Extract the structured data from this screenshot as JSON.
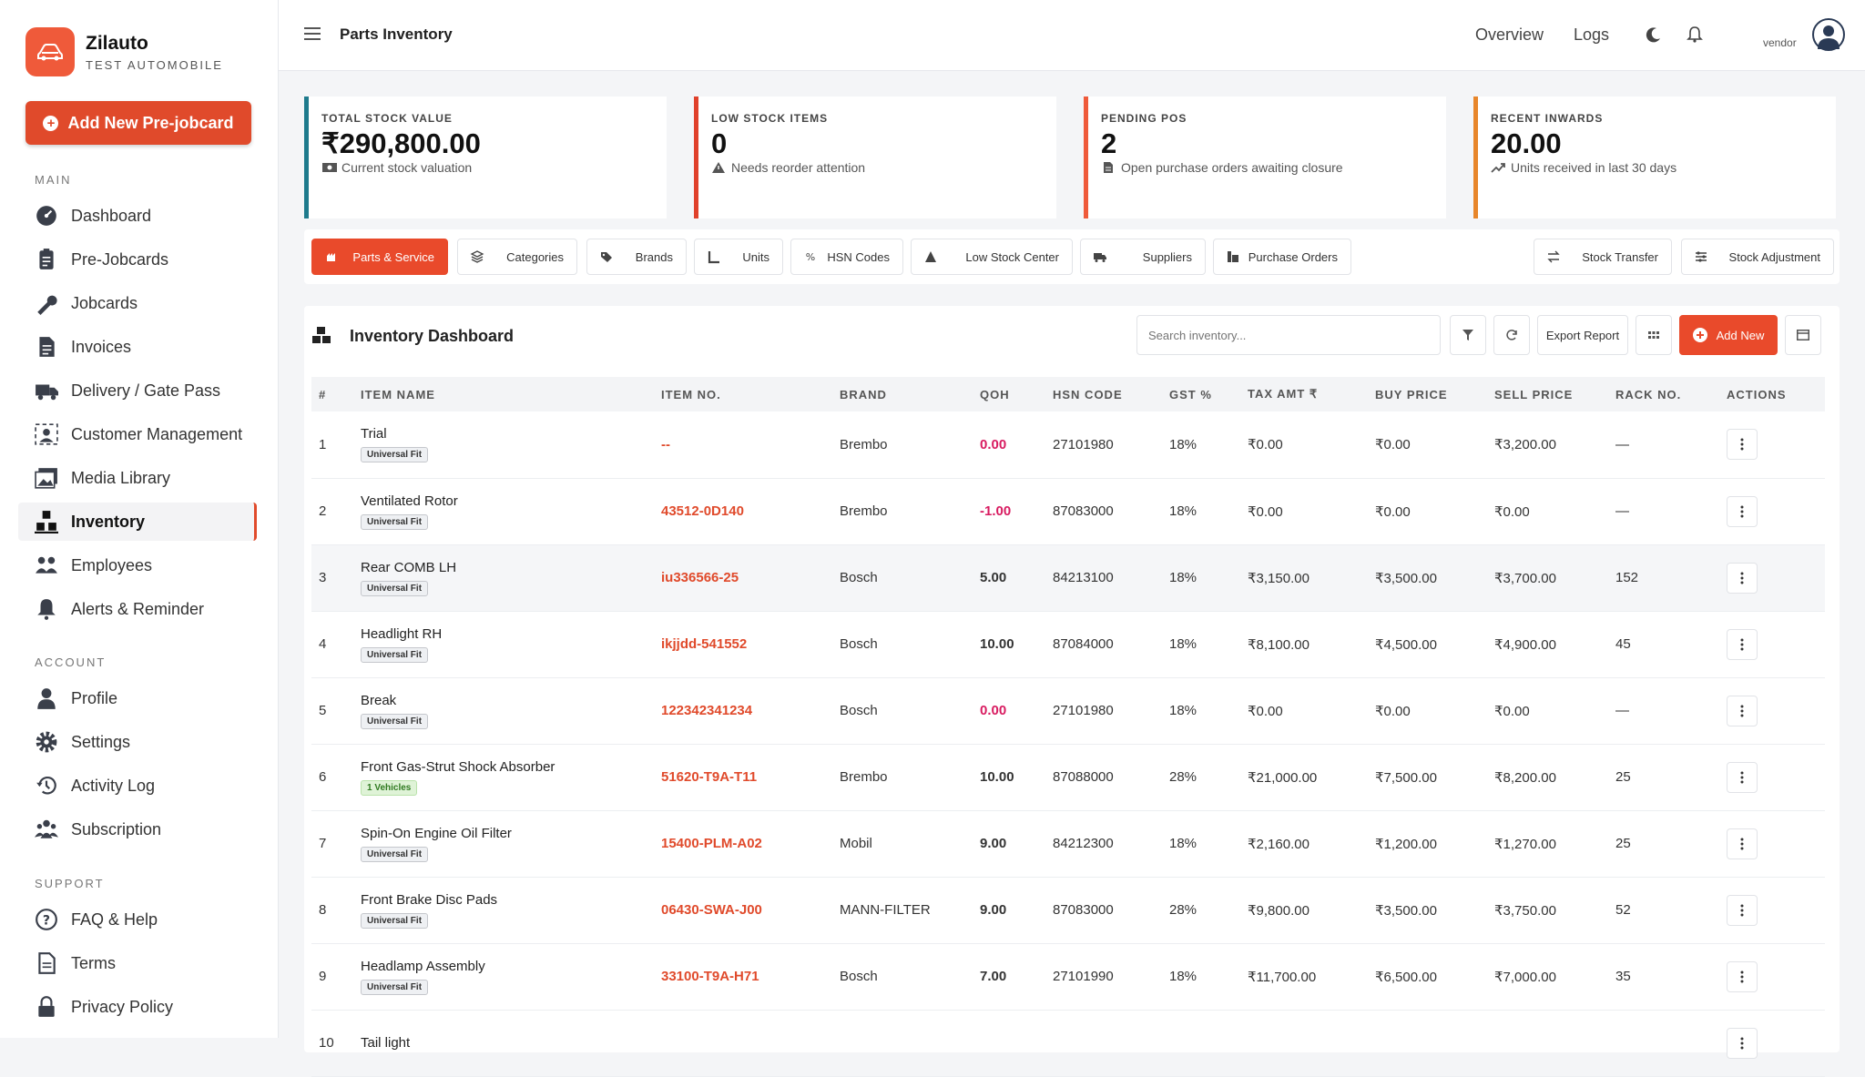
{
  "brand": {
    "name": "Zilauto",
    "subtitle": "TEST AUTOMOBILE"
  },
  "sidebar": {
    "prejobcard_button": "Add New Pre-jobcard",
    "sections": {
      "main": "MAIN",
      "account": "ACCOUNT",
      "support": "SUPPORT"
    },
    "main_items": [
      {
        "label": "Dashboard",
        "icon": "dashboard-icon"
      },
      {
        "label": "Pre-Jobcards",
        "icon": "clipboard-icon"
      },
      {
        "label": "Jobcards",
        "icon": "wrench-icon"
      },
      {
        "label": "Invoices",
        "icon": "invoice-icon"
      },
      {
        "label": "Delivery / Gate Pass",
        "icon": "truck-icon"
      },
      {
        "label": "Customer Management",
        "icon": "customers-icon"
      },
      {
        "label": "Media Library",
        "icon": "media-icon"
      },
      {
        "label": "Inventory",
        "icon": "inventory-icon",
        "active": true
      },
      {
        "label": "Employees",
        "icon": "employees-icon"
      },
      {
        "label": "Alerts & Reminder",
        "icon": "bell-icon"
      }
    ],
    "account_items": [
      {
        "label": "Profile",
        "icon": "user-icon"
      },
      {
        "label": "Settings",
        "icon": "gear-icon"
      },
      {
        "label": "Activity Log",
        "icon": "history-icon"
      },
      {
        "label": "Subscription",
        "icon": "users-icon"
      }
    ],
    "support_items": [
      {
        "label": "FAQ & Help",
        "icon": "help-icon"
      },
      {
        "label": "Terms",
        "icon": "document-icon"
      },
      {
        "label": "Privacy Policy",
        "icon": "lock-icon"
      }
    ]
  },
  "header": {
    "title": "Parts Inventory",
    "links": [
      "Overview",
      "Logs"
    ],
    "user": "vendor"
  },
  "cards": [
    {
      "label": "TOTAL STOCK VALUE",
      "value": "₹290,800.00",
      "sub": "Current stock valuation",
      "color": "#1e7a8c",
      "icon": "money-icon"
    },
    {
      "label": "LOW STOCK ITEMS",
      "value": "0",
      "sub": "Needs reorder attention",
      "color": "#e0412b",
      "icon": "warning-icon"
    },
    {
      "label": "PENDING POS",
      "value": "2",
      "sub": "Open purchase orders awaiting closure",
      "color": "#ef5a3a",
      "icon": "file-icon"
    },
    {
      "label": "RECENT INWARDS",
      "value": "20.00",
      "sub": "Units received in last 30 days",
      "color": "#e8862a",
      "icon": "trend-up-icon"
    }
  ],
  "tabs": [
    "Parts & Service",
    "Categories",
    "Brands",
    "Units",
    "HSN Codes",
    "Low Stock Center",
    "Suppliers",
    "Purchase Orders"
  ],
  "right_tabs": [
    "Stock Transfer",
    "Stock Adjustment"
  ],
  "panel": {
    "title": "Inventory Dashboard",
    "search_placeholder": "Search inventory...",
    "export_label": "Export Report",
    "add_label": "Add New"
  },
  "table": {
    "headers": [
      "#",
      "ITEM NAME",
      "ITEM NO.",
      "BRAND",
      "QOH",
      "HSN CODE",
      "GST %",
      "TAX AMT ₹",
      "BUY PRICE",
      "SELL PRICE",
      "RACK NO.",
      "ACTIONS"
    ],
    "rows": [
      {
        "n": "1",
        "name": "Trial",
        "fit": "Universal Fit",
        "no": "--",
        "brand": "Brembo",
        "qoh": "0.00",
        "hsn": "27101980",
        "gst": "18%",
        "tax": "₹0.00",
        "buy": "₹0.00",
        "sell": "₹3,200.00",
        "rack": "—"
      },
      {
        "n": "2",
        "name": "Ventilated Rotor",
        "fit": "Universal Fit",
        "no": "43512-0D140",
        "brand": "Brembo",
        "qoh": "-1.00",
        "hsn": "87083000",
        "gst": "18%",
        "tax": "₹0.00",
        "buy": "₹0.00",
        "sell": "₹0.00",
        "rack": "—"
      },
      {
        "n": "3",
        "name": "Rear COMB LH",
        "fit": "Universal Fit",
        "no": "iu336566-25",
        "brand": "Bosch",
        "qoh": "5.00",
        "hsn": "84213100",
        "gst": "18%",
        "tax": "₹3,150.00",
        "buy": "₹3,500.00",
        "sell": "₹3,700.00",
        "rack": "152"
      },
      {
        "n": "4",
        "name": "Headlight RH",
        "fit": "Universal Fit",
        "no": "ikjjdd-541552",
        "brand": "Bosch",
        "qoh": "10.00",
        "hsn": "87084000",
        "gst": "18%",
        "tax": "₹8,100.00",
        "buy": "₹4,500.00",
        "sell": "₹4,900.00",
        "rack": "45"
      },
      {
        "n": "5",
        "name": "Break",
        "fit": "Universal Fit",
        "no": "122342341234",
        "brand": "Bosch",
        "qoh": "0.00",
        "hsn": "27101980",
        "gst": "18%",
        "tax": "₹0.00",
        "buy": "₹0.00",
        "sell": "₹0.00",
        "rack": "—"
      },
      {
        "n": "6",
        "name": "Front Gas-Strut Shock Absorber",
        "fit": "1 Vehicles",
        "no": "51620-T9A-T11",
        "brand": "Brembo",
        "qoh": "10.00",
        "hsn": "87088000",
        "gst": "28%",
        "tax": "₹21,000.00",
        "buy": "₹7,500.00",
        "sell": "₹8,200.00",
        "rack": "25"
      },
      {
        "n": "7",
        "name": "Spin-On Engine Oil Filter",
        "fit": "Universal Fit",
        "no": "15400-PLM-A02",
        "brand": "Mobil",
        "qoh": "9.00",
        "hsn": "84212300",
        "gst": "18%",
        "tax": "₹2,160.00",
        "buy": "₹1,200.00",
        "sell": "₹1,270.00",
        "rack": "25"
      },
      {
        "n": "8",
        "name": "Front Brake Disc Pads",
        "fit": "Universal Fit",
        "no": "06430-SWA-J00",
        "brand": "MANN-FILTER",
        "qoh": "9.00",
        "hsn": "87083000",
        "gst": "28%",
        "tax": "₹9,800.00",
        "buy": "₹3,500.00",
        "sell": "₹3,750.00",
        "rack": "52"
      },
      {
        "n": "9",
        "name": "Headlamp Assembly",
        "fit": "Universal Fit",
        "no": "33100-T9A-H71",
        "brand": "Bosch",
        "qoh": "7.00",
        "hsn": "27101990",
        "gst": "18%",
        "tax": "₹11,700.00",
        "buy": "₹6,500.00",
        "sell": "₹7,000.00",
        "rack": "35"
      },
      {
        "n": "10",
        "name": "Tail light",
        "fit": "",
        "no": "",
        "brand": "",
        "qoh": "",
        "hsn": "",
        "gst": "",
        "tax": "",
        "buy": "",
        "sell": "",
        "rack": ""
      }
    ]
  },
  "colors": {
    "accent": "#e94a2b",
    "negative": "#d81b60",
    "teal": "#1e7a8c"
  }
}
